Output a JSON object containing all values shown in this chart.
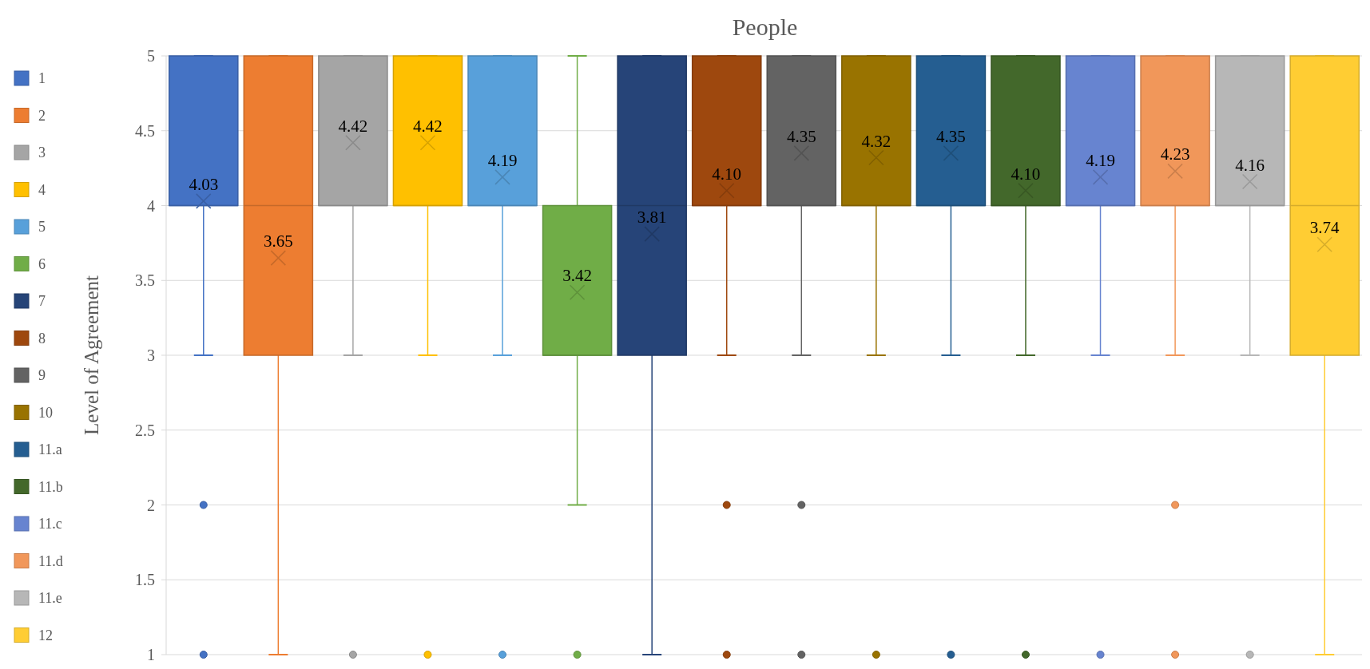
{
  "chart_data": {
    "type": "box",
    "title": "People",
    "ylabel": "Level of Agreement",
    "categories": [
      null
    ],
    "ylim": [
      1,
      5
    ],
    "yticks": [
      1,
      1.5,
      2,
      2.5,
      3,
      3.5,
      4,
      4.5,
      5
    ],
    "grid": "y",
    "legend": "left",
    "series": [
      {
        "name": "1",
        "color": "#4472c4",
        "boxes": [
          {
            "low": 3,
            "q1": 4,
            "median": 4,
            "q3": 5,
            "high": 5,
            "mean": 4.03,
            "outliers": [
              2,
              1
            ]
          }
        ],
        "value_labels": [
          "4.03"
        ]
      },
      {
        "name": "2",
        "color": "#ed7d31",
        "boxes": [
          {
            "low": 1,
            "q1": 3,
            "median": 4,
            "q3": 5,
            "high": 5,
            "mean": 3.65
          }
        ],
        "value_labels": [
          "3.65"
        ]
      },
      {
        "name": "3",
        "color": "#a5a5a5",
        "boxes": [
          {
            "low": 3,
            "q1": 4,
            "median": 4,
            "q3": 5,
            "high": 5,
            "mean": 4.42,
            "outliers": [
              1
            ]
          }
        ],
        "value_labels": [
          "4.42"
        ]
      },
      {
        "name": "4",
        "color": "#ffc000",
        "boxes": [
          {
            "low": 3,
            "q1": 4,
            "median": 4,
            "q3": 5,
            "high": 5,
            "mean": 4.42,
            "outliers": [
              1
            ]
          }
        ],
        "value_labels": [
          "4.42"
        ]
      },
      {
        "name": "5",
        "color": "#58a0da",
        "boxes": [
          {
            "low": 3,
            "q1": 4,
            "median": 4,
            "q3": 5,
            "high": 5,
            "mean": 4.19,
            "outliers": [
              1
            ]
          }
        ],
        "value_labels": [
          "4.19"
        ]
      },
      {
        "name": "6",
        "color": "#70ad47",
        "boxes": [
          {
            "low": 2,
            "q1": 3,
            "median": 3,
            "q3": 4,
            "high": 5,
            "mean": 3.42,
            "outliers": [
              1
            ]
          }
        ],
        "value_labels": [
          "3.42"
        ]
      },
      {
        "name": "7",
        "color": "#264478",
        "boxes": [
          {
            "low": 1,
            "q1": 3,
            "median": 4,
            "q3": 5,
            "high": 5,
            "mean": 3.81
          }
        ],
        "value_labels": [
          "3.81"
        ]
      },
      {
        "name": "8",
        "color": "#9e480e",
        "boxes": [
          {
            "low": 3,
            "q1": 4,
            "median": 4,
            "q3": 5,
            "high": 5,
            "mean": 4.1,
            "outliers": [
              2,
              1
            ]
          }
        ],
        "value_labels": [
          "4.10"
        ]
      },
      {
        "name": "9",
        "color": "#636363",
        "boxes": [
          {
            "low": 3,
            "q1": 4,
            "median": 4,
            "q3": 5,
            "high": 5,
            "mean": 4.35,
            "outliers": [
              2,
              1
            ]
          }
        ],
        "value_labels": [
          "4.35"
        ]
      },
      {
        "name": "10",
        "color": "#997300",
        "boxes": [
          {
            "low": 3,
            "q1": 4,
            "median": 4,
            "q3": 5,
            "high": 5,
            "mean": 4.32,
            "outliers": [
              1
            ]
          }
        ],
        "value_labels": [
          "4.32"
        ]
      },
      {
        "name": "11.a",
        "color": "#255e91",
        "boxes": [
          {
            "low": 3,
            "q1": 4,
            "median": 4,
            "q3": 5,
            "high": 5,
            "mean": 4.35,
            "outliers": [
              1
            ]
          }
        ],
        "value_labels": [
          "4.35"
        ]
      },
      {
        "name": "11.b",
        "color": "#43682b",
        "boxes": [
          {
            "low": 3,
            "q1": 4,
            "median": 4,
            "q3": 5,
            "high": 5,
            "mean": 4.1,
            "outliers": [
              1
            ]
          }
        ],
        "value_labels": [
          "4.10"
        ]
      },
      {
        "name": "11.c",
        "color": "#6784d0",
        "boxes": [
          {
            "low": 3,
            "q1": 4,
            "median": 4,
            "q3": 5,
            "high": 5,
            "mean": 4.19,
            "outliers": [
              1
            ]
          }
        ],
        "value_labels": [
          "4.19"
        ]
      },
      {
        "name": "11.d",
        "color": "#f1975a",
        "boxes": [
          {
            "low": 3,
            "q1": 4,
            "median": 4,
            "q3": 5,
            "high": 5,
            "mean": 4.23,
            "outliers": [
              2,
              1
            ]
          }
        ],
        "value_labels": [
          "4.23"
        ]
      },
      {
        "name": "11.e",
        "color": "#b7b7b7",
        "boxes": [
          {
            "low": 3,
            "q1": 4,
            "median": 4,
            "q3": 5,
            "high": 5,
            "mean": 4.16,
            "outliers": [
              1
            ]
          }
        ],
        "value_labels": [
          "4.16"
        ]
      },
      {
        "name": "12",
        "color": "#ffcd33",
        "boxes": [
          {
            "low": 1,
            "q1": 3,
            "median": 4,
            "q3": 5,
            "high": 5,
            "mean": 3.74
          }
        ],
        "value_labels": [
          "3.74"
        ]
      }
    ]
  }
}
